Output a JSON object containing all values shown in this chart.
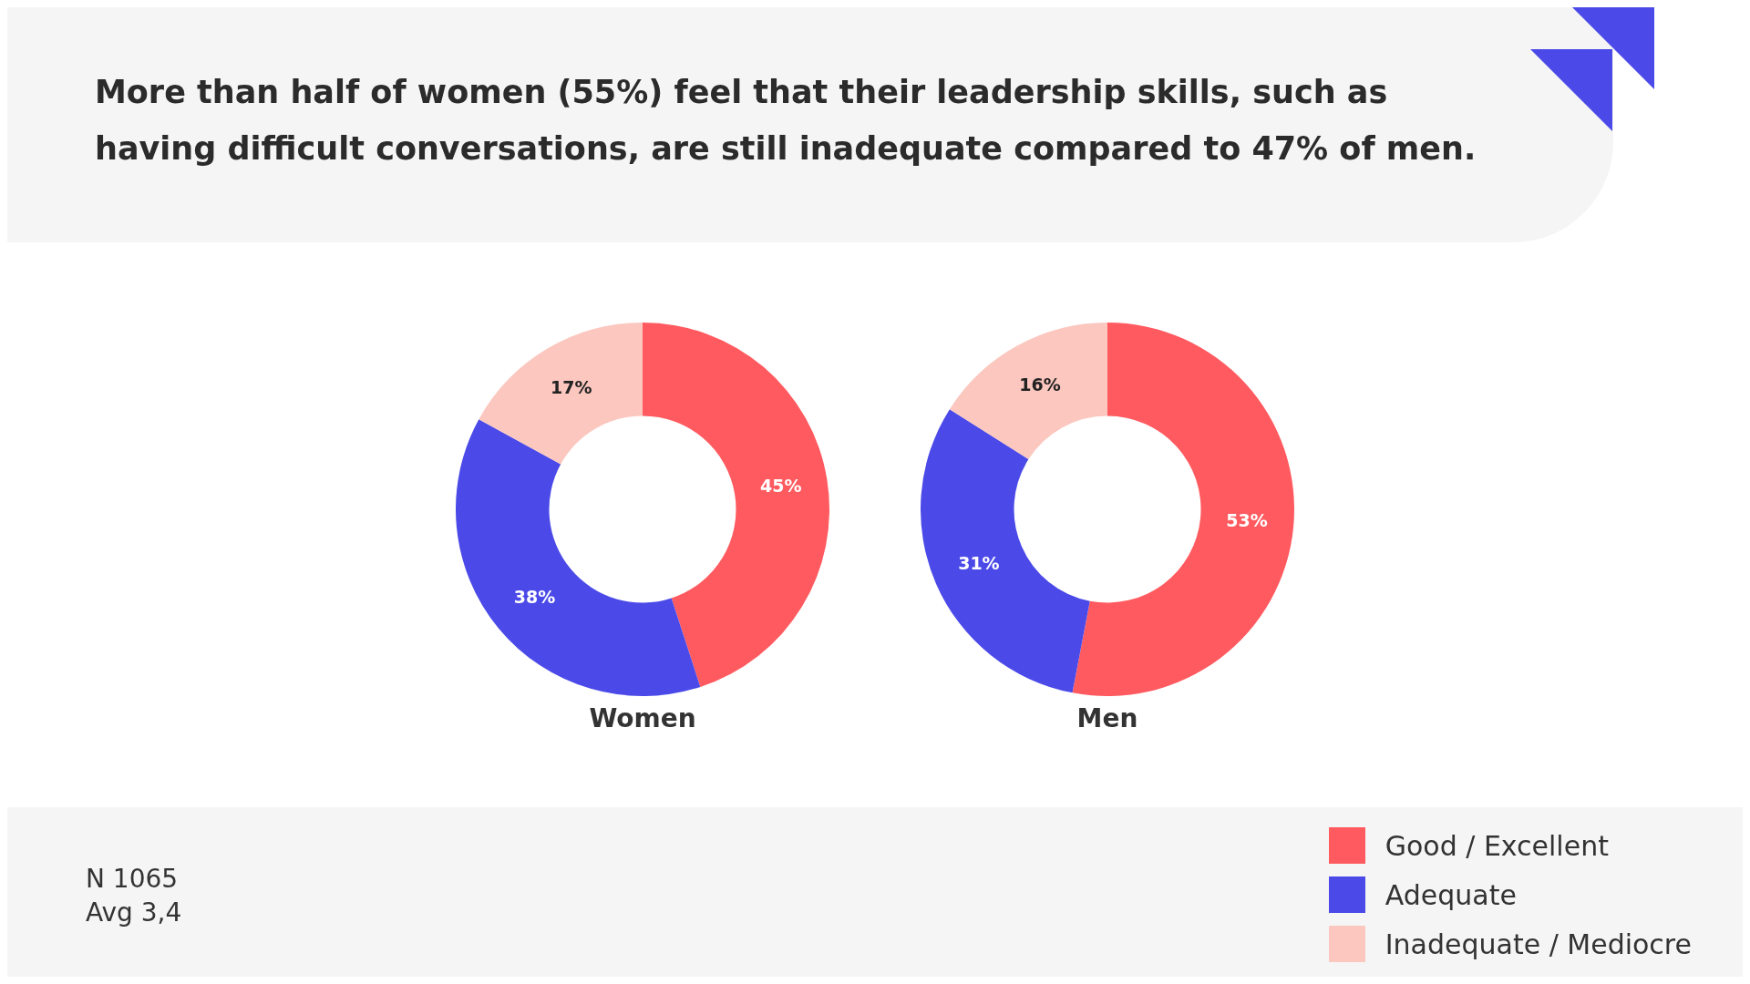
{
  "chart_data": [
    {
      "type": "donut",
      "title": "More than half of women (55%) feel that their leadership skills, such as having difficult conversations, are still inadequate compared to 47% of men.",
      "xlabel": "Women",
      "categories": [
        "Good / Excellent",
        "Adequate",
        "Inadequate / Mediocre"
      ],
      "values": [
        45,
        38,
        17
      ],
      "colors": [
        "#ff5a5f",
        "#4b4ae8",
        "#fbc7bf"
      ],
      "value_labels": [
        "45%",
        "38%",
        "17%"
      ],
      "annotations": [
        "N 1065",
        "Avg 3,4"
      ],
      "legend": "bottom right"
    },
    {
      "type": "donut",
      "xlabel": "Men",
      "categories": [
        null,
        null,
        null
      ],
      "values": [
        53,
        31,
        16
      ],
      "colors": [
        "#ff5a5f",
        "#4b4ae8",
        "#fbc7bf"
      ],
      "value_labels": [
        "53%",
        "31%",
        "16%"
      ]
    }
  ]
}
